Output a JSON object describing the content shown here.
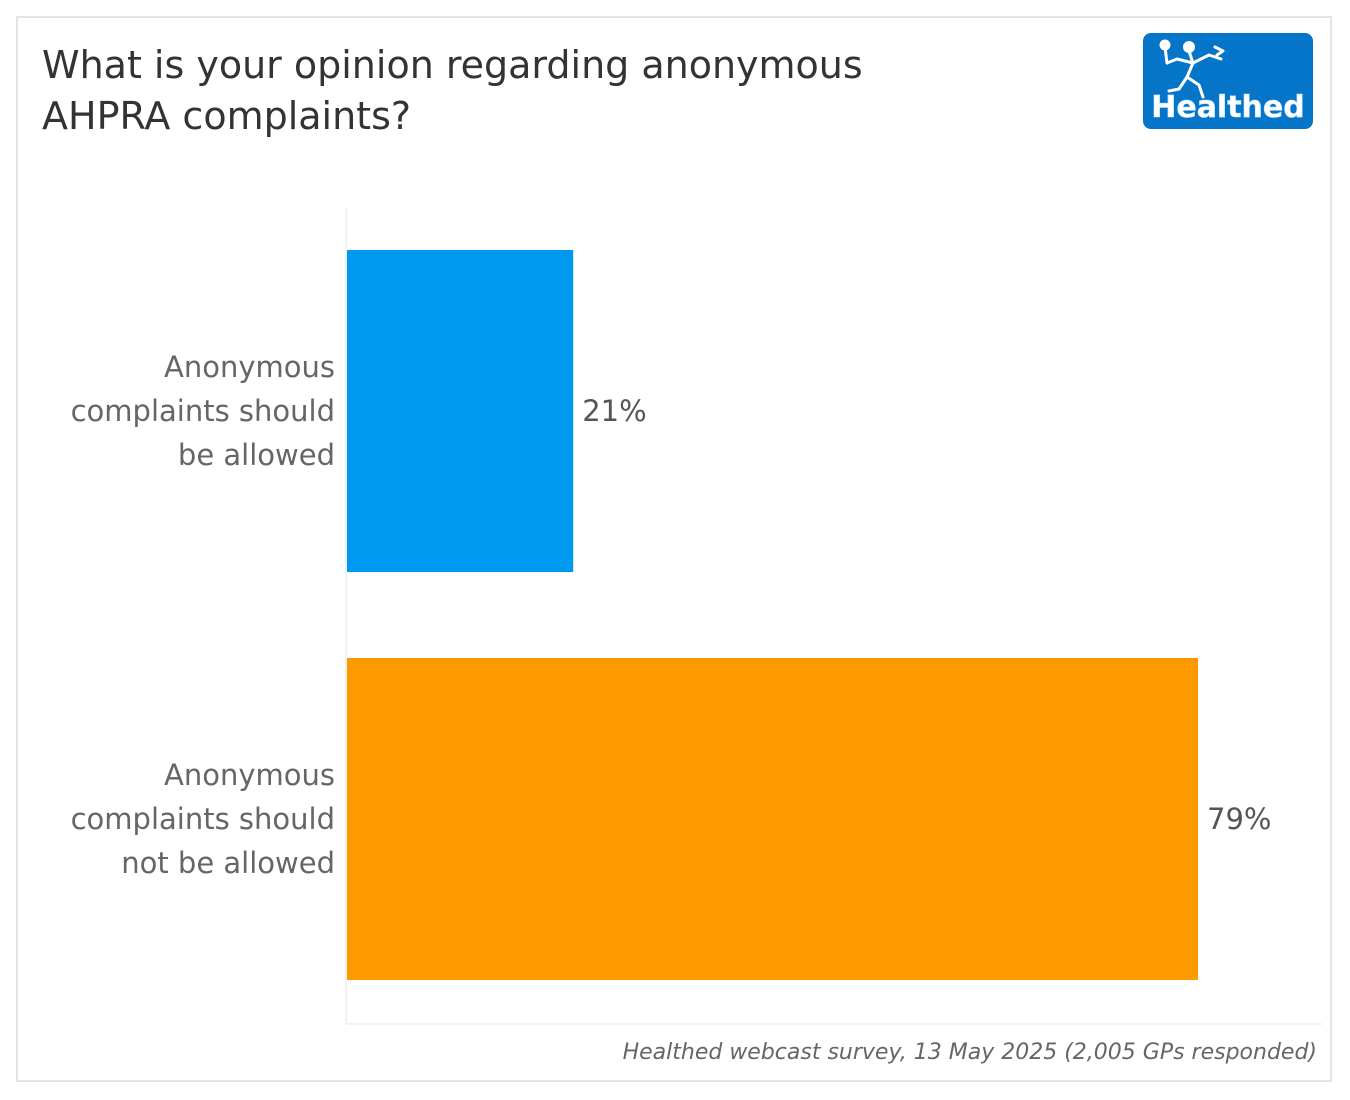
{
  "header": {
    "title_line1": "What is your opinion regarding anonymous",
    "title_line2": "AHPRA complaints?"
  },
  "logo": {
    "text": "Healthed",
    "icon": "hermes-runner-icon",
    "color": "#0575c9"
  },
  "chart_data": {
    "type": "bar",
    "orientation": "horizontal",
    "title": "What is your opinion regarding anonymous AHPRA complaints?",
    "categories": [
      "Anonymous complaints should be allowed",
      "Anonymous complaints should not be allowed"
    ],
    "category_lines": [
      [
        "Anonymous",
        "complaints should",
        "be allowed"
      ],
      [
        "Anonymous",
        "complaints should",
        "not be allowed"
      ]
    ],
    "values": [
      21,
      79
    ],
    "value_labels": [
      "21%",
      "79%"
    ],
    "colors": [
      "#0099f0",
      "#ff9900"
    ],
    "xlim": [
      0,
      100
    ],
    "unit": "%",
    "grid": false,
    "legend": "none",
    "xlabel": "",
    "ylabel": ""
  },
  "footer": {
    "source": "Healthed webcast survey, 13 May 2025 (2,005 GPs responded)"
  }
}
